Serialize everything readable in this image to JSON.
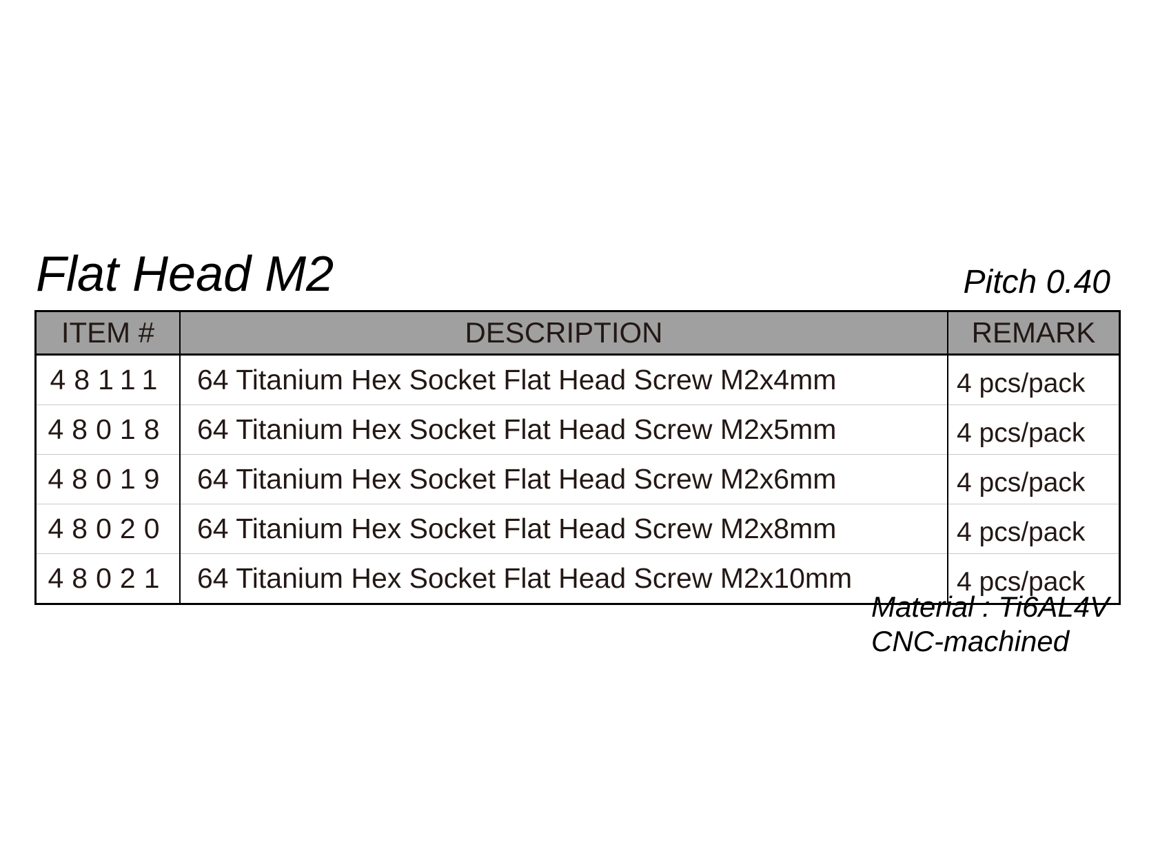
{
  "title": "Flat Head M2",
  "pitch": "Pitch 0.40",
  "table": {
    "headers": [
      "ITEM #",
      "DESCRIPTION",
      "REMARK"
    ],
    "rows": [
      {
        "item": "48111",
        "description": "64 Titanium Hex Socket Flat Head Screw M2x4mm",
        "remark": "4 pcs/pack"
      },
      {
        "item": "48018",
        "description": "64 Titanium Hex Socket Flat Head Screw M2x5mm",
        "remark": "4 pcs/pack"
      },
      {
        "item": "48019",
        "description": "64 Titanium Hex Socket Flat Head Screw M2x6mm",
        "remark": "4 pcs/pack"
      },
      {
        "item": "48020",
        "description": "64 Titanium Hex Socket Flat Head Screw M2x8mm",
        "remark": "4 pcs/pack"
      },
      {
        "item": "48021",
        "description": "64 Titanium Hex Socket Flat Head Screw M2x10mm",
        "remark": "4 pcs/pack"
      }
    ],
    "header_color": "#a0a0a0"
  },
  "notes": {
    "material": "Material : Ti6AL4V",
    "process": "CNC-machined"
  }
}
